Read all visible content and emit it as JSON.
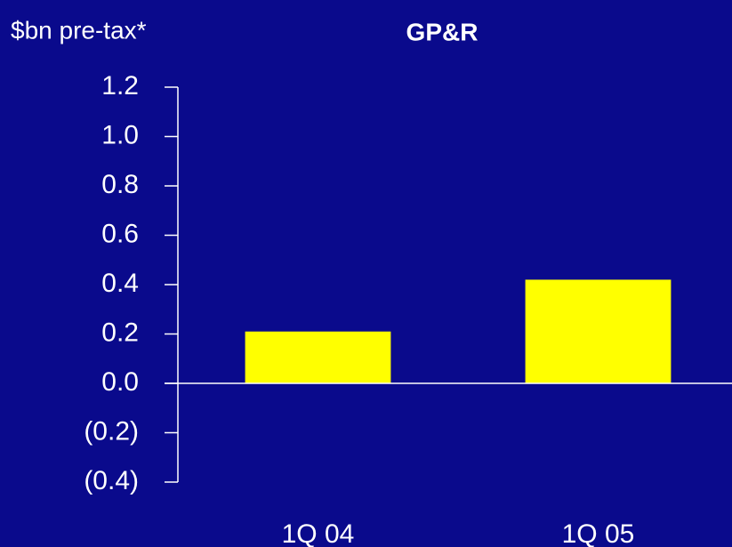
{
  "chart_data": {
    "type": "bar",
    "title": "GP&R",
    "y_label": "$bn pre-tax*",
    "categories": [
      "1Q 04",
      "1Q 05"
    ],
    "values": [
      0.21,
      0.42
    ],
    "color": "#ffff00",
    "ylim": [
      -0.4,
      1.2
    ],
    "yticks": [
      {
        "value": -0.4,
        "label": "(0.4)"
      },
      {
        "value": -0.2,
        "label": "(0.2)"
      },
      {
        "value": 0,
        "label": "0.0"
      },
      0.2,
      0.4,
      0.6,
      0.8,
      {
        "value": 1,
        "label": "1.0"
      },
      1.2
    ],
    "grid": false
  }
}
